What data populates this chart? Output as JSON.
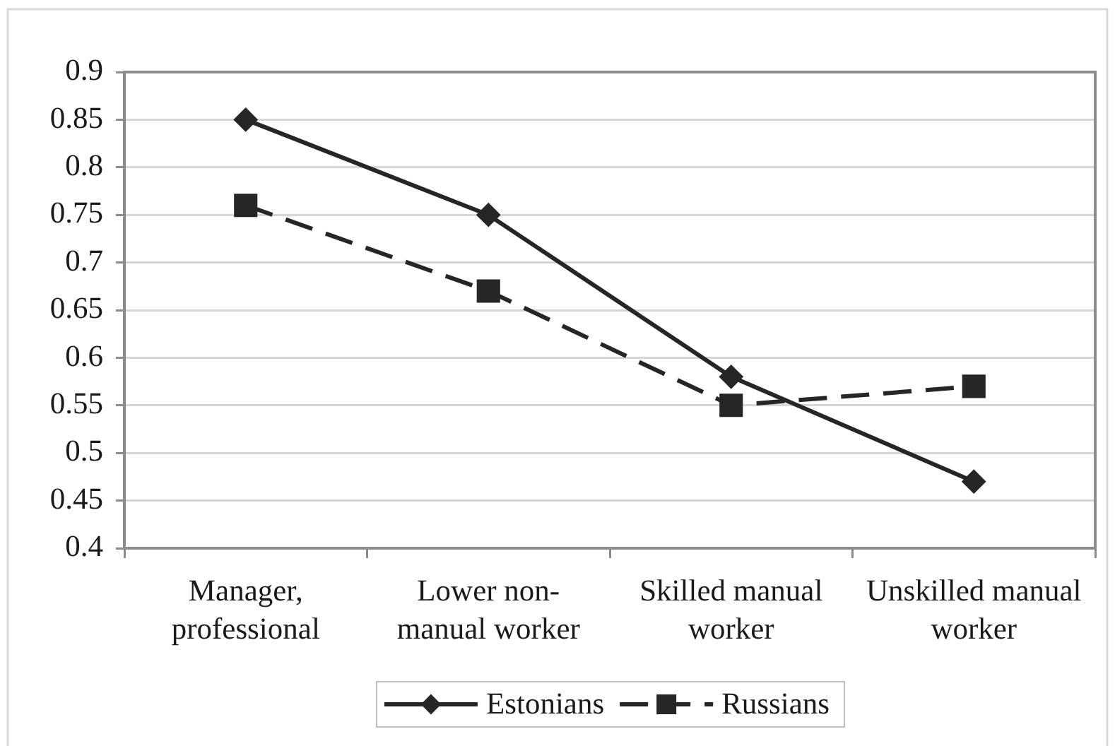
{
  "chart_data": {
    "type": "line",
    "categories": [
      "Manager, professional",
      "Lower non-manual worker",
      "Skilled manual worker",
      "Unskilled manual worker"
    ],
    "series": [
      {
        "name": "Estonians",
        "color": "#262626",
        "values": [
          0.85,
          0.75,
          0.58,
          0.47
        ],
        "marker": "diamond",
        "line_style": "solid"
      },
      {
        "name": "Russians",
        "color": "#262626",
        "values": [
          0.76,
          0.67,
          0.55,
          0.57
        ],
        "marker": "square",
        "line_style": "dashed"
      }
    ],
    "ylim": [
      0.4,
      0.9
    ],
    "yticks": [
      0.4,
      0.45,
      0.5,
      0.55,
      0.6,
      0.65,
      0.7,
      0.75,
      0.8,
      0.85,
      0.9
    ],
    "grid": "y",
    "legend": "bottom"
  }
}
